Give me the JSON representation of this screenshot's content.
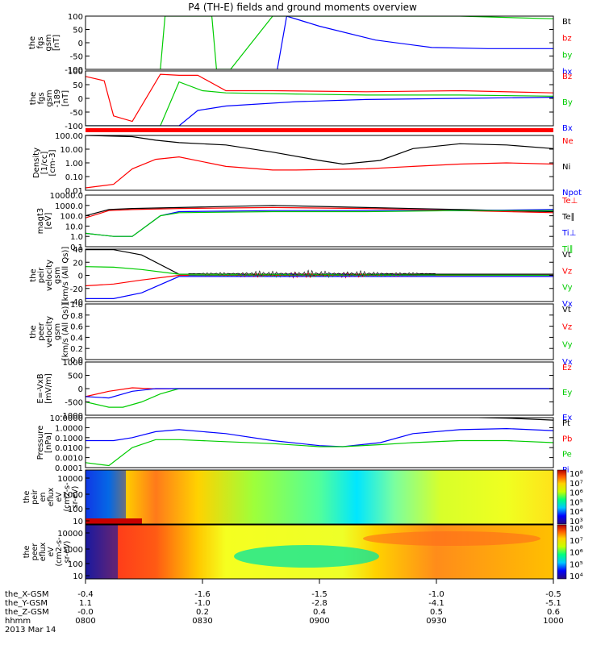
{
  "title": "P4 (TH-E) fields and ground moments overview",
  "colors": {
    "black": "#000000",
    "red": "#ff0000",
    "green": "#00cc00",
    "blue": "#0000ff"
  },
  "chart_data": {
    "type": "line",
    "x_range": [
      "0800",
      "1000"
    ],
    "time_ticks": [
      "0800",
      "0830",
      "0900",
      "0930",
      "1000"
    ],
    "ephemeris": {
      "labels": [
        "the_X-GSM",
        "the_Y-GSM",
        "the_Z-GSM",
        "hhmm",
        "2013 Mar 14"
      ],
      "rows": [
        [
          "-0.4",
          "-1.6",
          "-1.5",
          "-1.0",
          "-0.5"
        ],
        [
          "1.1",
          "-1.0",
          "-2.8",
          "-4.1",
          "-5.1"
        ],
        [
          "-0.0",
          "0.2",
          "0.4",
          "0.5",
          "0.6"
        ]
      ]
    },
    "panels": [
      {
        "ylabel": [
          "the",
          "fgs",
          "gsm",
          "[nT]"
        ],
        "yticks": [
          "100",
          "50",
          "0",
          "-50",
          "-100"
        ],
        "ylim": [
          -100,
          100
        ],
        "legend": [
          [
            "Bt",
            "black"
          ],
          [
            "bz",
            "red"
          ],
          [
            "by",
            "green"
          ],
          [
            "bx",
            "blue"
          ]
        ],
        "series": [
          {
            "label": "bx",
            "color": "blue",
            "x": [
              0.41,
              0.43,
              0.5,
              0.62,
              0.74,
              0.86,
              1.0
            ],
            "y": [
              -100,
              100,
              62,
              10,
              -18,
              -22,
              -22
            ]
          },
          {
            "label": "by",
            "color": "green",
            "x": [
              0.16,
              0.17,
              0.27,
              0.28,
              0.31,
              0.4,
              0.43,
              0.6,
              0.8,
              1.0
            ],
            "y": [
              -100,
              100,
              100,
              -100,
              -100,
              100,
              100,
              100,
              100,
              90
            ]
          }
        ]
      },
      {
        "ylabel": [
          "the",
          "fgs",
          "gsm",
          "-189",
          "[nT]"
        ],
        "yticks": [
          "100",
          "50",
          "0",
          "-50",
          "-100"
        ],
        "ylim": [
          -130,
          120
        ],
        "legend": [
          [
            "Bz",
            "red"
          ],
          [
            "By",
            "green"
          ],
          [
            "Bx",
            "blue"
          ]
        ],
        "series": [
          {
            "label": "Bz",
            "color": "red",
            "x": [
              0,
              0.04,
              0.06,
              0.1,
              0.16,
              0.2,
              0.24,
              0.3,
              0.4,
              0.6,
              0.8,
              1.0
            ],
            "y": [
              95,
              75,
              -85,
              -110,
              105,
              100,
              100,
              30,
              30,
              25,
              30,
              20
            ]
          },
          {
            "label": "By",
            "color": "green",
            "x": [
              0,
              0.16,
              0.2,
              0.25,
              0.3,
              0.45,
              0.6,
              0.8,
              1.0
            ],
            "y": [
              -130,
              -130,
              70,
              30,
              20,
              15,
              10,
              10,
              5
            ]
          },
          {
            "label": "Bx",
            "color": "blue",
            "x": [
              0,
              0.2,
              0.24,
              0.3,
              0.45,
              0.6,
              0.8,
              1.0
            ],
            "y": [
              -130,
              -130,
              -60,
              -40,
              -20,
              -10,
              -5,
              0
            ]
          }
        ]
      },
      {
        "ylabel": [
          "Density",
          "[1/cc]",
          "[cm-3]"
        ],
        "yticks": [
          "100.00",
          "10.00",
          "1.00",
          "0.10",
          "0.01"
        ],
        "ylim": [
          -2.3,
          2.3
        ],
        "log": true,
        "legend": [
          [
            "Ne",
            "red"
          ],
          [
            "Ni",
            "black"
          ],
          [
            "Npot",
            "blue"
          ]
        ],
        "series": [
          {
            "label": "Ni",
            "color": "black",
            "x": [
              0,
              0.1,
              0.15,
              0.2,
              0.3,
              0.4,
              0.5,
              0.55,
              0.63,
              0.7,
              0.8,
              0.9,
              1.0
            ],
            "y": [
              2.3,
              2.2,
              1.9,
              1.7,
              1.5,
              0.9,
              0.2,
              -0.1,
              0.2,
              1.2,
              1.6,
              1.5,
              1.2
            ]
          },
          {
            "label": "Ne",
            "color": "red",
            "x": [
              0,
              0.06,
              0.1,
              0.15,
              0.2,
              0.3,
              0.4,
              0.45,
              0.6,
              0.7,
              0.8,
              0.9,
              1.0
            ],
            "y": [
              -2.1,
              -1.8,
              -0.5,
              0.3,
              0.5,
              -0.3,
              -0.6,
              -0.6,
              -0.5,
              -0.3,
              -0.1,
              0,
              -0.1
            ]
          }
        ]
      },
      {
        "ylabel": [
          "magt3",
          "[eV]"
        ],
        "yticks": [
          "10000.0",
          "1000.0",
          "100.0",
          "10.0",
          "1.0",
          "0.1"
        ],
        "ylim": [
          -1,
          4
        ],
        "log": true,
        "legend": [
          [
            "Te⊥",
            "red"
          ],
          [
            "Te∥",
            "black"
          ],
          [
            "Ti⊥",
            "blue"
          ],
          [
            "Ti∥",
            "green"
          ]
        ],
        "series": [
          {
            "label": "Te⊥",
            "color": "red",
            "x": [
              0,
              0.05,
              0.1,
              0.2,
              0.4,
              0.6,
              0.8,
              1.0
            ],
            "y": [
              1.8,
              2.5,
              2.6,
              2.7,
              2.8,
              2.7,
              2.5,
              2.3
            ]
          },
          {
            "label": "Te∥",
            "color": "black",
            "x": [
              0,
              0.05,
              0.1,
              0.2,
              0.4,
              0.6,
              0.8,
              1.0
            ],
            "y": [
              2.0,
              2.6,
              2.7,
              2.8,
              3.0,
              2.8,
              2.6,
              2.4
            ]
          },
          {
            "label": "Ti⊥",
            "color": "blue",
            "x": [
              0,
              0.06,
              0.1,
              0.16,
              0.2,
              0.4,
              0.6,
              0.8,
              1.0
            ],
            "y": [
              0.3,
              0,
              0,
              2.0,
              2.4,
              2.5,
              2.5,
              2.5,
              2.6
            ]
          },
          {
            "label": "Ti∥",
            "color": "green",
            "x": [
              0,
              0.06,
              0.1,
              0.16,
              0.2,
              0.4,
              0.6,
              0.8,
              1.0
            ],
            "y": [
              0.3,
              0,
              0,
              2.0,
              2.3,
              2.4,
              2.4,
              2.5,
              2.5
            ]
          }
        ]
      },
      {
        "ylabel": [
          "the",
          "peir",
          "velocity",
          "gsm",
          "[km/s (All Qs)]"
        ],
        "yticks": [
          "40",
          "20",
          "0",
          "-20",
          "-40"
        ],
        "ylim": [
          -45,
          45
        ],
        "legend": [
          [
            "Vt",
            "black"
          ],
          [
            "Vz",
            "red"
          ],
          [
            "Vy",
            "green"
          ],
          [
            "Vx",
            "blue"
          ]
        ],
        "noise": [
          0.22,
          0.75,
          6
        ],
        "series": [
          {
            "label": "Vt",
            "color": "black",
            "x": [
              0,
              0.06,
              0.12,
              0.2,
              1.0
            ],
            "y": [
              44,
              44,
              35,
              2,
              2
            ]
          },
          {
            "label": "Vz",
            "color": "red",
            "x": [
              0,
              0.06,
              0.12,
              0.2,
              1.0
            ],
            "y": [
              -18,
              -15,
              -8,
              0,
              0
            ]
          },
          {
            "label": "Vy",
            "color": "green",
            "x": [
              0,
              0.06,
              0.12,
              0.2,
              1.0
            ],
            "y": [
              15,
              14,
              10,
              2,
              0
            ]
          },
          {
            "label": "Vx",
            "color": "blue",
            "x": [
              0,
              0.06,
              0.12,
              0.2,
              1.0
            ],
            "y": [
              -40,
              -40,
              -30,
              -2,
              -2
            ]
          }
        ]
      },
      {
        "ylabel": [
          "the",
          "peer",
          "velocity",
          "gsm",
          "[km/s (All Qs)]"
        ],
        "yticks": [
          "1.0",
          "0.8",
          "0.6",
          "0.4",
          "0.2",
          "0.0"
        ],
        "ylim": [
          0,
          1
        ],
        "legend": [
          [
            "Vt",
            "black"
          ],
          [
            "Vz",
            "red"
          ],
          [
            "Vy",
            "green"
          ],
          [
            "Vx",
            "blue"
          ]
        ],
        "series": []
      },
      {
        "ylabel": [
          "E=-VxB",
          "[mV/m]"
        ],
        "yticks": [
          "1000",
          "500",
          "0",
          "-500",
          "-1000"
        ],
        "ylim": [
          -1000,
          1000
        ],
        "legend": [
          [
            "Ez",
            "red"
          ],
          [
            "Ey",
            "green"
          ],
          [
            "Ex",
            "blue"
          ]
        ],
        "series": [
          {
            "label": "Ez",
            "color": "red",
            "x": [
              0,
              0.05,
              0.1,
              0.15,
              0.2,
              1.0
            ],
            "y": [
              -300,
              -100,
              30,
              -10,
              0,
              0
            ]
          },
          {
            "label": "Ey",
            "color": "green",
            "x": [
              0,
              0.05,
              0.08,
              0.12,
              0.16,
              0.2,
              1.0
            ],
            "y": [
              -500,
              -700,
              -700,
              -500,
              -200,
              0,
              0
            ]
          },
          {
            "label": "Ex",
            "color": "blue",
            "x": [
              0,
              0.05,
              0.1,
              0.15,
              0.2,
              1.0
            ],
            "y": [
              -300,
              -350,
              -100,
              0,
              0,
              0
            ]
          }
        ]
      },
      {
        "ylabel": [
          "Pressure",
          "[nPa]"
        ],
        "yticks": [
          "10.0000",
          "1.0000",
          "0.1000",
          "0.0100",
          "0.0010",
          "0.0001"
        ],
        "ylim": [
          -4,
          1
        ],
        "log": true,
        "legend": [
          [
            "Pt",
            "black"
          ],
          [
            "Pb",
            "red"
          ],
          [
            "Pe",
            "green"
          ],
          [
            "Pi",
            "blue"
          ]
        ],
        "series": [
          {
            "label": "Pt",
            "color": "black",
            "x": [
              0.8,
              0.9,
              1.0
            ],
            "y": [
              1.05,
              0.95,
              0.75
            ]
          },
          {
            "label": "Pi",
            "color": "blue",
            "x": [
              0,
              0.06,
              0.1,
              0.15,
              0.2,
              0.3,
              0.4,
              0.5,
              0.55,
              0.63,
              0.7,
              0.8,
              0.9,
              1.0
            ],
            "y": [
              -1.3,
              -1.3,
              -1.0,
              -0.4,
              -0.2,
              -0.6,
              -1.3,
              -1.8,
              -1.9,
              -1.5,
              -0.6,
              -0.2,
              -0.1,
              -0.3
            ]
          },
          {
            "label": "Pe",
            "color": "green",
            "x": [
              0,
              0.05,
              0.1,
              0.15,
              0.2,
              0.3,
              0.4,
              0.5,
              0.55,
              0.63,
              0.7,
              0.8,
              0.9,
              1.0
            ],
            "y": [
              -3.5,
              -3.8,
              -2.0,
              -1.2,
              -1.2,
              -1.4,
              -1.6,
              -1.9,
              -1.9,
              -1.7,
              -1.5,
              -1.3,
              -1.3,
              -1.5
            ]
          }
        ]
      }
    ],
    "spectrograms": [
      {
        "ylabel": [
          "the",
          "peir",
          "en",
          "eflux",
          "eV",
          "(cm2-s-",
          "sr-eV)"
        ],
        "yticks": [
          "10000",
          "1000",
          "100",
          "10"
        ],
        "colorbar_ticks": [
          "10⁸",
          "10⁷",
          "10⁶",
          "10⁵",
          "10⁴",
          "10³"
        ]
      },
      {
        "ylabel": [
          "the",
          "peer",
          "eflux",
          "eV",
          "(cm2-s-",
          "sr-eV)"
        ],
        "yticks": [
          "10000",
          "1000",
          "100",
          "10"
        ],
        "colorbar_ticks": [
          "10⁸",
          "10⁷",
          "10⁶",
          "10⁵",
          "10⁴"
        ]
      }
    ]
  }
}
